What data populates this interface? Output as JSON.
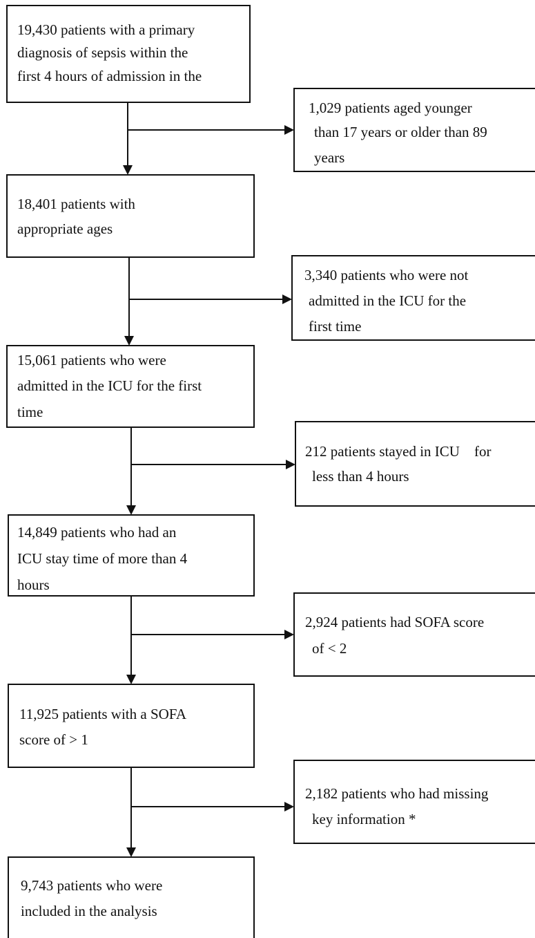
{
  "flow": {
    "steps": [
      {
        "lines": [
          "19,430 patients with a primary",
          "diagnosis of sepsis within the",
          "first 4 hours of admission in the"
        ]
      },
      {
        "lines": [
          "18,401 patients with",
          "appropriate ages"
        ]
      },
      {
        "lines": [
          "15,061 patients who were",
          "admitted in the ICU for the first",
          "time"
        ]
      },
      {
        "lines": [
          "14,849 patients who had an",
          "ICU stay time of more than 4",
          "hours"
        ]
      },
      {
        "lines": [
          "11,925 patients with a SOFA",
          "score of > 1"
        ]
      },
      {
        "lines": [
          "9,743 patients who were",
          "included in the analysis"
        ]
      }
    ],
    "exclusions": [
      {
        "lines": [
          "1,029 patients aged younger",
          "than 17 years or older than 89",
          "years"
        ]
      },
      {
        "lines": [
          "3,340 patients who were not",
          "admitted in the ICU for the",
          "first time"
        ]
      },
      {
        "lines": [
          "212 patients stayed in ICU    for",
          "less than 4 hours"
        ]
      },
      {
        "lines": [
          "2,924 patients had SOFA score",
          "of < 2"
        ]
      },
      {
        "lines": [
          "2,182 patients who had missing",
          "key information *"
        ]
      }
    ]
  }
}
